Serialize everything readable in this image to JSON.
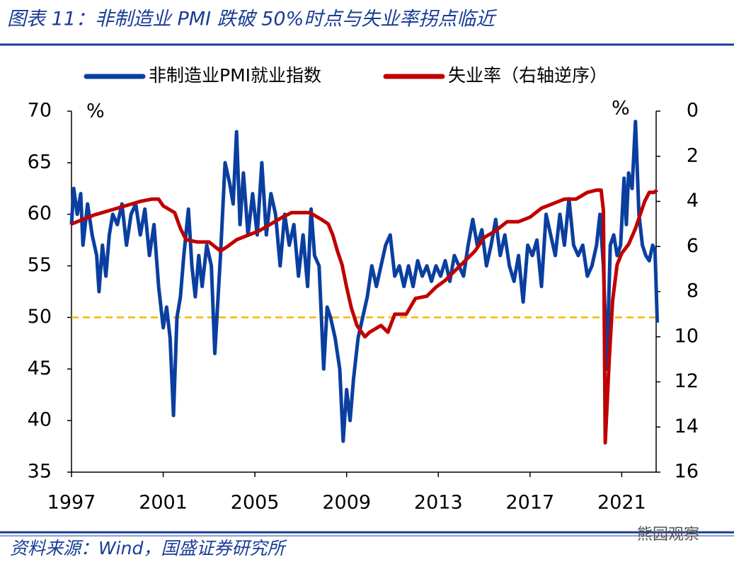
{
  "chart_data": {
    "type": "line",
    "title": "图表 11：非制造业 PMI 跌破 50%时点与失业率拐点临近",
    "source": "资料来源：Wind，国盛证券研究所",
    "watermark": "熊园观察",
    "y_unit": "%",
    "y2_unit": "%",
    "xlim": [
      1997,
      2022.5
    ],
    "xticks": [
      1997,
      2001,
      2005,
      2009,
      2013,
      2017,
      2021
    ],
    "ylim": [
      35,
      70
    ],
    "yticks": [
      35,
      40,
      45,
      50,
      55,
      60,
      65,
      70
    ],
    "y2lim": [
      0,
      16
    ],
    "y2ticks": [
      0,
      2,
      4,
      6,
      8,
      10,
      12,
      14,
      16
    ],
    "y2_inverted": true,
    "reference_line": {
      "value": 50,
      "color": "#f5b800"
    },
    "legend": "top",
    "series": [
      {
        "name": "非制造业PMI就业指数",
        "color": "#0a3fa0",
        "axis": "y",
        "x": [
          1997.0,
          1997.1,
          1997.25,
          1997.4,
          1997.5,
          1997.7,
          1997.9,
          1998.1,
          1998.2,
          1998.35,
          1998.5,
          1998.65,
          1998.8,
          1999.0,
          1999.2,
          1999.4,
          1999.6,
          1999.8,
          2000.0,
          2000.2,
          2000.4,
          2000.6,
          2000.8,
          2001.0,
          2001.15,
          2001.3,
          2001.45,
          2001.6,
          2001.75,
          2001.9,
          2002.1,
          2002.25,
          2002.4,
          2002.55,
          2002.7,
          2002.9,
          2003.1,
          2003.25,
          2003.5,
          2003.7,
          2003.9,
          2004.05,
          2004.2,
          2004.35,
          2004.5,
          2004.7,
          2004.9,
          2005.1,
          2005.3,
          2005.5,
          2005.7,
          2005.9,
          2006.1,
          2006.3,
          2006.5,
          2006.7,
          2006.9,
          2007.1,
          2007.3,
          2007.45,
          2007.6,
          2007.8,
          2008.0,
          2008.15,
          2008.3,
          2008.5,
          2008.7,
          2008.85,
          2009.0,
          2009.15,
          2009.3,
          2009.5,
          2009.7,
          2009.9,
          2010.1,
          2010.3,
          2010.5,
          2010.7,
          2010.9,
          2011.1,
          2011.3,
          2011.5,
          2011.7,
          2011.9,
          2012.1,
          2012.3,
          2012.5,
          2012.7,
          2012.9,
          2013.1,
          2013.3,
          2013.5,
          2013.7,
          2013.9,
          2014.1,
          2014.3,
          2014.5,
          2014.7,
          2014.9,
          2015.1,
          2015.3,
          2015.5,
          2015.7,
          2015.9,
          2016.1,
          2016.3,
          2016.5,
          2016.7,
          2016.9,
          2017.1,
          2017.3,
          2017.5,
          2017.7,
          2017.9,
          2018.1,
          2018.3,
          2018.5,
          2018.7,
          2018.9,
          2019.1,
          2019.3,
          2019.5,
          2019.7,
          2019.9,
          2020.05,
          2020.2,
          2020.35,
          2020.5,
          2020.65,
          2020.8,
          2020.95,
          2021.1,
          2021.2,
          2021.3,
          2021.45,
          2021.6,
          2021.75,
          2021.9,
          2022.05,
          2022.2,
          2022.35,
          2022.45,
          2022.55
        ],
        "values": [
          59,
          62.5,
          60,
          62,
          57,
          61,
          58,
          56,
          52.5,
          57,
          54,
          58,
          60,
          59,
          61,
          57,
          60,
          61,
          58,
          60.5,
          56,
          59,
          53,
          49,
          51,
          48,
          40.5,
          50,
          52,
          56,
          60.5,
          55,
          52,
          56,
          53,
          57,
          55,
          46.5,
          56,
          65,
          63,
          61,
          68,
          59,
          64,
          58,
          62,
          58,
          65,
          58,
          62,
          60,
          55,
          60,
          57,
          59,
          54,
          58,
          53,
          60.5,
          56,
          55,
          45,
          51,
          50,
          48,
          45,
          38,
          43,
          40,
          44,
          48,
          50,
          52,
          55,
          53,
          55,
          57,
          58,
          54,
          55,
          53,
          55,
          53,
          55.5,
          54,
          55,
          53.5,
          55,
          54,
          55.5,
          53.5,
          56,
          55,
          54,
          57,
          59.5,
          57,
          58.5,
          55,
          57,
          59.5,
          56,
          58,
          55,
          53.5,
          56,
          51.5,
          57,
          56,
          57.5,
          53,
          60,
          58,
          56,
          60,
          57,
          61.5,
          57,
          56,
          57,
          54,
          55,
          57,
          60,
          55,
          45,
          57,
          58,
          56,
          57,
          63.5,
          59,
          64,
          62.5,
          69,
          60,
          57,
          56,
          55.5,
          57,
          56.5,
          49.5
        ]
      },
      {
        "name": "失业率（右轴逆序）",
        "color": "#c00000",
        "axis": "y2",
        "x": [
          1997.0,
          1998.0,
          1999.0,
          2000.0,
          2000.5,
          2000.8,
          2001.0,
          2001.5,
          2001.75,
          2002.0,
          2002.5,
          2003.0,
          2003.5,
          2003.8,
          2004.2,
          2004.7,
          2005.2,
          2005.7,
          2006.2,
          2006.6,
          2007.0,
          2007.4,
          2007.9,
          2008.2,
          2008.4,
          2008.6,
          2008.8,
          2009.0,
          2009.2,
          2009.45,
          2009.8,
          2010.0,
          2010.5,
          2010.8,
          2011.1,
          2011.6,
          2012.0,
          2012.5,
          2012.9,
          2013.3,
          2013.8,
          2014.2,
          2014.6,
          2015.0,
          2015.5,
          2016.0,
          2016.5,
          2017.0,
          2017.5,
          2018.0,
          2018.5,
          2019.0,
          2019.5,
          2019.9,
          2020.1,
          2020.2,
          2020.28,
          2020.45,
          2020.6,
          2020.8,
          2021.0,
          2021.3,
          2021.6,
          2021.8,
          2022.0,
          2022.2,
          2022.4,
          2022.55
        ],
        "values": [
          5.0,
          4.6,
          4.3,
          4.0,
          3.9,
          3.9,
          4.2,
          4.5,
          5.2,
          5.7,
          5.8,
          5.8,
          6.2,
          6.0,
          5.7,
          5.5,
          5.3,
          5.0,
          4.7,
          4.5,
          4.5,
          4.5,
          4.8,
          5.0,
          5.5,
          6.2,
          6.8,
          7.8,
          8.7,
          9.5,
          10.0,
          9.8,
          9.5,
          9.8,
          9.0,
          9.0,
          8.3,
          8.2,
          7.8,
          7.5,
          7.0,
          6.6,
          6.2,
          5.6,
          5.3,
          4.9,
          4.9,
          4.7,
          4.3,
          4.1,
          3.9,
          3.9,
          3.6,
          3.5,
          3.5,
          4.4,
          14.7,
          11.1,
          8.4,
          6.8,
          6.3,
          5.9,
          5.2,
          4.6,
          4.0,
          3.6,
          3.6,
          3.5
        ]
      }
    ]
  }
}
